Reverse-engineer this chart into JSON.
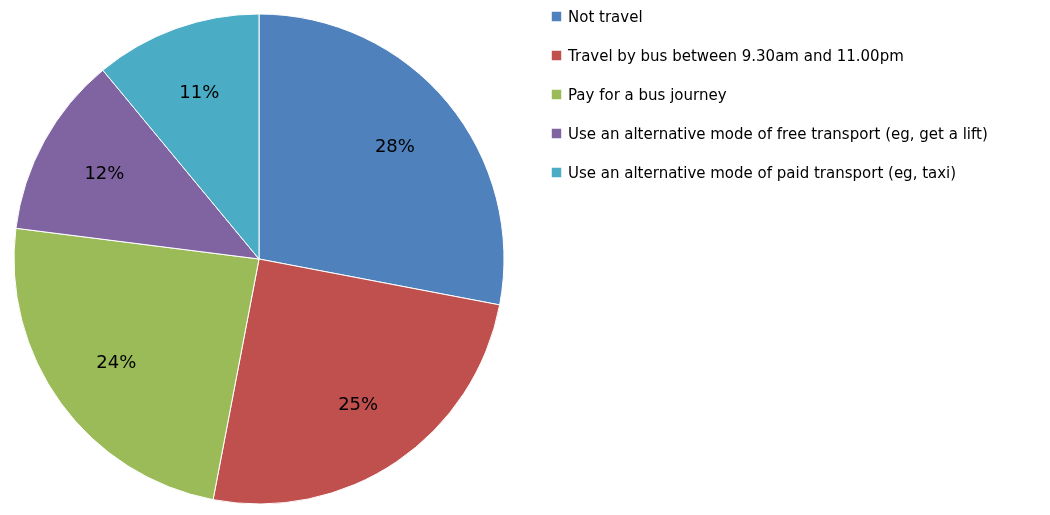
{
  "chart_data": {
    "type": "pie",
    "categories": [
      "Not travel",
      "Travel by bus between 9.30am and 11.00pm",
      "Pay for a bus journey",
      "Use an alternative mode of free transport (eg, get a lift)",
      "Use an alternative mode of paid transport (eg, taxi)"
    ],
    "values": [
      28,
      25,
      24,
      12,
      11
    ],
    "colors": [
      "#4f81bd",
      "#c0504d",
      "#9bbb59",
      "#8064a2",
      "#4bacc6"
    ],
    "value_labels": [
      "28%",
      "25%",
      "24%",
      "12%",
      "11%"
    ],
    "legend": "right"
  }
}
